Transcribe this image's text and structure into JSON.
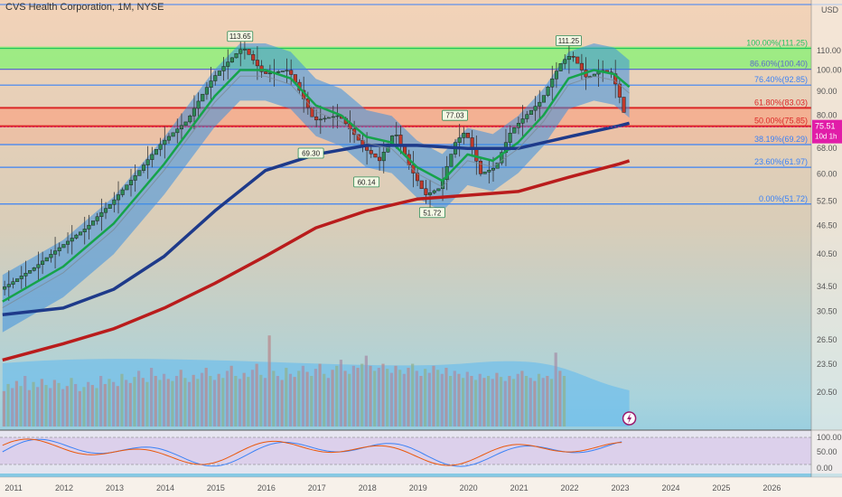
{
  "header": {
    "title": "CVS Health Corporation, 1M, NYSE"
  },
  "price_axis": {
    "currency": "USD",
    "ticks": [
      "110.00",
      "100.00",
      "90.00",
      "80.00",
      "68.00",
      "60.00",
      "52.50",
      "46.50",
      "40.50",
      "34.50",
      "30.50",
      "26.50",
      "23.50",
      "20.50"
    ]
  },
  "current_price": {
    "value": "75.51",
    "countdown": "10d 1h"
  },
  "oscillator_axis": {
    "ticks": [
      "100.00",
      "50.00",
      "0.00"
    ]
  },
  "chart_data": {
    "type": "line",
    "title": "CVS Health Corporation, 1M, NYSE",
    "xlabel": "",
    "ylabel": "",
    "years": [
      "2011",
      "2012",
      "2013",
      "2014",
      "2015",
      "2016",
      "2017",
      "2018",
      "2019",
      "2020",
      "2021",
      "2022",
      "2023",
      "2024",
      "2025",
      "2026"
    ],
    "fib_levels": [
      {
        "label": "100.00%(111.25)",
        "price": 111.25,
        "color": "#22c55e"
      },
      {
        "label": "86.60%(100.40)",
        "price": 100.4,
        "color": "#5b6cc8"
      },
      {
        "label": "76.40%(92.85)",
        "price": 92.85,
        "color": "#3b82f6"
      },
      {
        "label": "61.80%(83.03)",
        "price": 83.03,
        "color": "#dc2626"
      },
      {
        "label": "50.00%(75.85)",
        "price": 75.85,
        "color": "#dc2626"
      },
      {
        "label": "38.19%(69.29)",
        "price": 69.29,
        "color": "#3b82f6"
      },
      {
        "label": "23.60%(61.97)",
        "price": 61.97,
        "color": "#3b82f6"
      },
      {
        "label": "0.00%(51.72)",
        "price": 51.72,
        "color": "#3b82f6"
      }
    ],
    "peak_labels": [
      {
        "text": "113.65",
        "year": 2015.5,
        "price": 113.65
      },
      {
        "text": "111.25",
        "year": 2022.0,
        "price": 111.25
      },
      {
        "text": "77.03",
        "year": 2019.75,
        "price": 77.03
      },
      {
        "text": "69.30",
        "year": 2016.9,
        "price": 69.3
      },
      {
        "text": "60.14",
        "year": 2018.0,
        "price": 60.14
      },
      {
        "text": "51.72",
        "year": 2019.3,
        "price": 51.72
      }
    ],
    "series": [
      {
        "name": "",
        "color": "#333333",
        "kind": "close",
        "points": [
          [
            2010.8,
            34
          ],
          [
            2011.0,
            35
          ],
          [
            2011.5,
            38
          ],
          [
            2012.0,
            42
          ],
          [
            2012.5,
            46
          ],
          [
            2013.0,
            52
          ],
          [
            2013.5,
            60
          ],
          [
            2014.0,
            70
          ],
          [
            2014.5,
            78
          ],
          [
            2015.0,
            96
          ],
          [
            2015.3,
            104
          ],
          [
            2015.6,
            112
          ],
          [
            2016.0,
            98
          ],
          [
            2016.5,
            100
          ],
          [
            2017.0,
            78
          ],
          [
            2017.5,
            80
          ],
          [
            2018.0,
            68
          ],
          [
            2018.3,
            64
          ],
          [
            2018.6,
            74
          ],
          [
            2018.9,
            62
          ],
          [
            2019.2,
            54
          ],
          [
            2019.5,
            56
          ],
          [
            2019.8,
            70
          ],
          [
            2020.0,
            74
          ],
          [
            2020.3,
            60
          ],
          [
            2020.6,
            62
          ],
          [
            2020.9,
            74
          ],
          [
            2021.2,
            80
          ],
          [
            2021.5,
            86
          ],
          [
            2021.9,
            104
          ],
          [
            2022.1,
            108
          ],
          [
            2022.4,
            96
          ],
          [
            2022.7,
            100
          ],
          [
            2022.9,
            98
          ],
          [
            2023.1,
            84
          ],
          [
            2023.2,
            75.5
          ]
        ]
      },
      {
        "name": "",
        "color": "#16a34a",
        "kind": "ma_fast",
        "points": [
          [
            2010.8,
            32
          ],
          [
            2012.0,
            38
          ],
          [
            2013.0,
            47
          ],
          [
            2014.0,
            63
          ],
          [
            2015.0,
            88
          ],
          [
            2015.5,
            100
          ],
          [
            2016.0,
            100
          ],
          [
            2016.5,
            96
          ],
          [
            2017.0,
            84
          ],
          [
            2017.5,
            80
          ],
          [
            2018.0,
            72
          ],
          [
            2018.5,
            70
          ],
          [
            2019.0,
            62
          ],
          [
            2019.5,
            58
          ],
          [
            2020.0,
            66
          ],
          [
            2020.5,
            64
          ],
          [
            2021.0,
            70
          ],
          [
            2021.5,
            80
          ],
          [
            2022.0,
            96
          ],
          [
            2022.5,
            100
          ],
          [
            2022.9,
            98
          ],
          [
            2023.2,
            92
          ]
        ]
      },
      {
        "name": "",
        "color": "#1e3a8a",
        "kind": "ma_mid",
        "points": [
          [
            2010.8,
            30
          ],
          [
            2012.0,
            31
          ],
          [
            2013.0,
            34
          ],
          [
            2014.0,
            40
          ],
          [
            2015.0,
            50
          ],
          [
            2016.0,
            61
          ],
          [
            2017.0,
            66
          ],
          [
            2018.0,
            69
          ],
          [
            2019.0,
            69
          ],
          [
            2020.0,
            68
          ],
          [
            2021.0,
            68
          ],
          [
            2022.0,
            72
          ],
          [
            2023.0,
            76
          ],
          [
            2023.2,
            77
          ]
        ]
      },
      {
        "name": "",
        "color": "#b91c1c",
        "kind": "ma_slow",
        "points": [
          [
            2010.8,
            24
          ],
          [
            2012.0,
            26
          ],
          [
            2013.0,
            28
          ],
          [
            2014.0,
            31
          ],
          [
            2015.0,
            35
          ],
          [
            2016.0,
            40
          ],
          [
            2017.0,
            46
          ],
          [
            2018.0,
            50
          ],
          [
            2019.0,
            53
          ],
          [
            2020.0,
            54
          ],
          [
            2021.0,
            55
          ],
          [
            2022.0,
            59
          ],
          [
            2023.0,
            63
          ],
          [
            2023.2,
            64
          ]
        ]
      }
    ],
    "volume": [
      0.35,
      0.42,
      0.38,
      0.45,
      0.4,
      0.5,
      0.36,
      0.44,
      0.39,
      0.47,
      0.41,
      0.38,
      0.46,
      0.43,
      0.37,
      0.4,
      0.48,
      0.42,
      0.35,
      0.39,
      0.44,
      0.41,
      0.38,
      0.5,
      0.42,
      0.47,
      0.44,
      0.4,
      0.52,
      0.46,
      0.43,
      0.49,
      0.55,
      0.48,
      0.44,
      0.58,
      0.5,
      0.46,
      0.52,
      0.47,
      0.45,
      0.5,
      0.56,
      0.48,
      0.44,
      0.51,
      0.47,
      0.53,
      0.58,
      0.5,
      0.46,
      0.52,
      0.48,
      0.55,
      0.6,
      0.5,
      0.47,
      0.53,
      0.49,
      0.56,
      0.62,
      0.51,
      0.48,
      0.9,
      0.55,
      0.5,
      0.46,
      0.58,
      0.52,
      0.49,
      0.55,
      0.6,
      0.54,
      0.5,
      0.57,
      0.62,
      0.52,
      0.48,
      0.56,
      0.6,
      0.66,
      0.55,
      0.52,
      0.6,
      0.58,
      0.62,
      0.7,
      0.6,
      0.55,
      0.58,
      0.62,
      0.57,
      0.53,
      0.6,
      0.56,
      0.52,
      0.58,
      0.62,
      0.55,
      0.5,
      0.57,
      0.53,
      0.6,
      0.56,
      0.52,
      0.58,
      0.5,
      0.55,
      0.52,
      0.48,
      0.54,
      0.5,
      0.46,
      0.52,
      0.48,
      0.5,
      0.47,
      0.53,
      0.49,
      0.45,
      0.5,
      0.47,
      0.52,
      0.55,
      0.5,
      0.48,
      0.45,
      0.52,
      0.48,
      0.5,
      0.47,
      0.73,
      0.55,
      0.5
    ]
  }
}
